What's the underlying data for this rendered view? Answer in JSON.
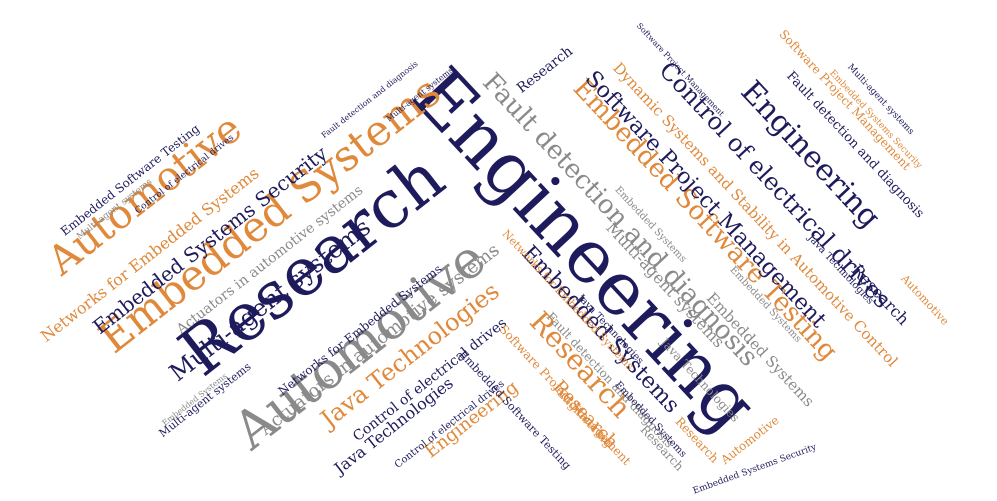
{
  "colors": {
    "navy": "#1e1b5c",
    "orange": "#e0893a",
    "gray": "#8a8a8a",
    "background": "#ffffff"
  },
  "words": [
    {
      "text": "Engineering",
      "color": "navy"
    },
    {
      "text": "Research",
      "color": "navy"
    },
    {
      "text": "Automotive",
      "color": "gray"
    },
    {
      "text": "Automotive",
      "color": "orange"
    },
    {
      "text": "Embedded Systems",
      "color": "orange"
    },
    {
      "text": "Fault detection and diagnosis",
      "color": "gray"
    },
    {
      "text": "Embedded Software Testing",
      "color": "orange"
    },
    {
      "text": "Software Project Management",
      "color": "navy"
    },
    {
      "text": "Control of electrical drives",
      "color": "navy"
    },
    {
      "text": "Engineering",
      "color": "navy"
    },
    {
      "text": "Multi-agent systems",
      "color": "navy"
    },
    {
      "text": "Research",
      "color": "orange"
    },
    {
      "text": "Java Technologies",
      "color": "orange"
    },
    {
      "text": "Embedded Systems Security",
      "color": "navy"
    },
    {
      "text": "Networks for Embedded Systems",
      "color": "orange"
    },
    {
      "text": "Actuators in automotive systems",
      "color": "gray"
    },
    {
      "text": "Dynamic Systems and Stability in Automotive Control",
      "color": "orange"
    },
    {
      "text": "Embedded Systems",
      "color": "navy"
    },
    {
      "text": "Multi-agent systems",
      "color": "gray"
    },
    {
      "text": "Research",
      "color": "navy"
    },
    {
      "text": "Embedded Systems",
      "color": "gray"
    },
    {
      "text": "Engineering",
      "color": "orange"
    },
    {
      "text": "Research",
      "color": "orange"
    },
    {
      "text": "Java Technologies",
      "color": "navy"
    },
    {
      "text": "Control of electrical drives",
      "color": "navy"
    },
    {
      "text": "Embedded Software Testing",
      "color": "navy"
    },
    {
      "text": "Fault detection and diagnosis",
      "color": "navy"
    },
    {
      "text": "Software Project Management",
      "color": "orange"
    },
    {
      "text": "Research",
      "color": "navy"
    },
    {
      "text": "Automotive",
      "color": "orange"
    },
    {
      "text": "Research",
      "color": "gray"
    },
    {
      "text": "Embedded Software Testing",
      "color": "navy"
    },
    {
      "text": "Multi-agent systems",
      "color": "gray"
    },
    {
      "text": "Software Project Management",
      "color": "orange"
    },
    {
      "text": "Engineering",
      "color": "orange"
    },
    {
      "text": "Research",
      "color": "orange"
    },
    {
      "text": "Automotive",
      "color": "orange"
    },
    {
      "text": "Java Technologies",
      "color": "gray"
    },
    {
      "text": "Java Technologies",
      "color": "navy"
    },
    {
      "text": "Multi-agent systems",
      "color": "navy"
    },
    {
      "text": "Embedded Systems Security",
      "color": "orange"
    },
    {
      "text": "Actuators in automotive systems",
      "color": "gray"
    },
    {
      "text": "Networks for Embedded Systems",
      "color": "navy"
    },
    {
      "text": "Embedded Systems",
      "color": "gray"
    },
    {
      "text": "Fault detection and diagnosis",
      "color": "gray"
    },
    {
      "text": "Control of electrical drives",
      "color": "navy"
    },
    {
      "text": "Control of electrical drives",
      "color": "navy"
    },
    {
      "text": "Multi-agent systems",
      "color": "navy"
    },
    {
      "text": "Embedded Systems",
      "color": "gray"
    },
    {
      "text": "Java Technologies",
      "color": "navy"
    },
    {
      "text": "Embedded Systems",
      "color": "navy"
    },
    {
      "text": "Networks for Embedded Systems",
      "color": "orange"
    },
    {
      "text": "Embedded Systems Security",
      "color": "navy"
    },
    {
      "text": "Software Project Management",
      "color": "navy"
    },
    {
      "text": "Fault detection and diagnosis",
      "color": "navy"
    },
    {
      "text": "Multi-agent systems",
      "color": "navy"
    },
    {
      "text": "Embedded Systems",
      "color": "gray"
    }
  ]
}
